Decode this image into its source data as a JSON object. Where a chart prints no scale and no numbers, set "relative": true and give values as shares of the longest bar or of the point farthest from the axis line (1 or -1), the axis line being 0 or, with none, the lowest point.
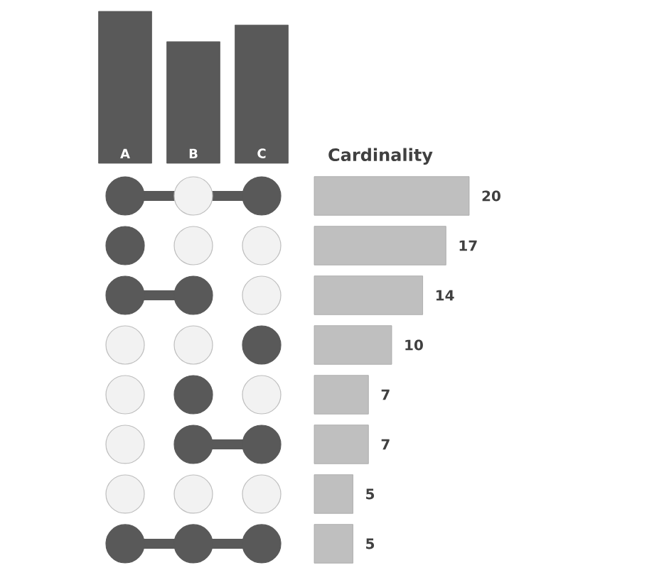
{
  "chart_data": [
    {
      "type": "bar",
      "categories": [
        "A",
        "B",
        "C"
      ],
      "values": [
        1,
        0.8,
        0.91
      ],
      "relative": true,
      "color": "#595959"
    },
    {
      "type": "bar",
      "orientation": "horizontal",
      "title": "Cardinality",
      "categories": [
        null,
        null,
        null,
        null,
        null,
        null,
        null,
        null
      ],
      "values": [
        20,
        17,
        14,
        10,
        7,
        7,
        5,
        5
      ],
      "color": "#bfbfbf",
      "data_labels": true
    }
  ]
}
